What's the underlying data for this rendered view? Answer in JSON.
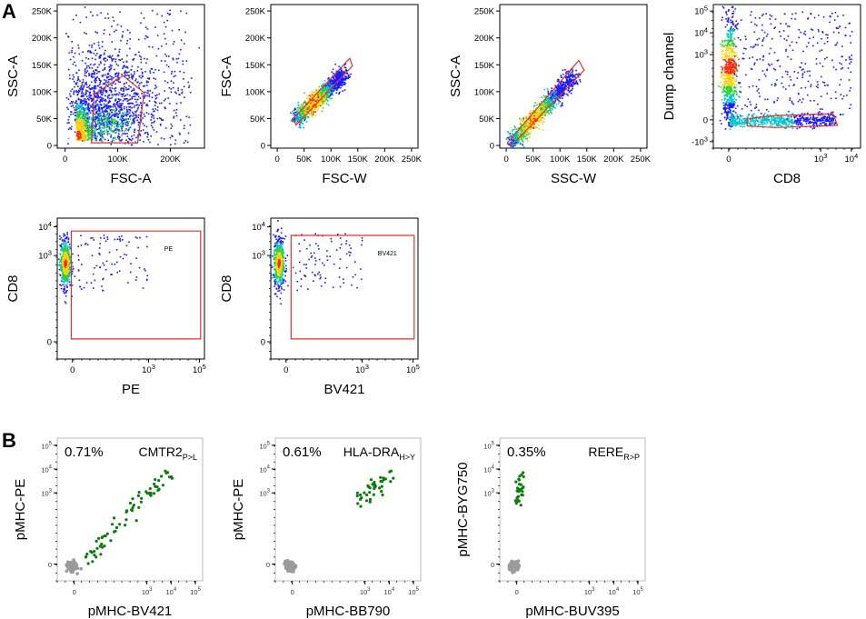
{
  "figure": {
    "panel_a_letter": "A",
    "panel_b_letter": "B",
    "colors": {
      "gate": "#e03030",
      "event_low": "#1a1aff",
      "event_mid": "#00c8c8",
      "event_hi": "#30d030",
      "event_top": "#ff2a00",
      "positive": "#0a7d0a",
      "negative": "#9b9b9b"
    }
  },
  "chart_data": [
    {
      "id": "a1",
      "type": "scatter",
      "xlabel": "FSC-A",
      "ylabel": "SSC-A",
      "xticks": [
        "0",
        "100K",
        "200K"
      ],
      "xtick_values": [
        0,
        100000,
        200000
      ],
      "xlim": [
        -15000,
        265000
      ],
      "yticks": [
        "0",
        "50K",
        "100K",
        "150K",
        "200K",
        "250K"
      ],
      "ytick_values": [
        0,
        50000,
        100000,
        150000,
        200000,
        250000
      ],
      "ylim": [
        -5000,
        262000
      ],
      "gate": {
        "shape": "polygon",
        "points": [
          [
            50000,
            5000
          ],
          [
            55000,
            95000
          ],
          [
            110000,
            130000
          ],
          [
            150000,
            98000
          ],
          [
            138000,
            5000
          ]
        ]
      }
    },
    {
      "id": "a2",
      "type": "scatter",
      "xlabel": "FSC-W",
      "ylabel": "FSC-A",
      "xticks": [
        "0",
        "50K",
        "100K",
        "150K",
        "200K",
        "250K"
      ],
      "xtick_values": [
        0,
        50000,
        100000,
        150000,
        200000,
        250000
      ],
      "xlim": [
        -12000,
        262000
      ],
      "yticks": [
        "0",
        "50K",
        "100K",
        "150K",
        "200K",
        "250K"
      ],
      "ytick_values": [
        0,
        50000,
        100000,
        150000,
        200000,
        250000
      ],
      "ylim": [
        -5000,
        262000
      ],
      "gate": {
        "shape": "polygon",
        "points": [
          [
            30000,
            50000
          ],
          [
            35000,
            38000
          ],
          [
            140000,
            148000
          ],
          [
            135000,
            162000
          ]
        ]
      }
    },
    {
      "id": "a3",
      "type": "scatter",
      "xlabel": "SSC-W",
      "ylabel": "SSC-A",
      "xticks": [
        "0",
        "50K",
        "100K",
        "150K",
        "200K",
        "250K"
      ],
      "xtick_values": [
        0,
        50000,
        100000,
        150000,
        200000,
        250000
      ],
      "xlim": [
        -12000,
        262000
      ],
      "yticks": [
        "0",
        "50K",
        "100K",
        "150K",
        "200K",
        "250K"
      ],
      "ytick_values": [
        0,
        50000,
        100000,
        150000,
        200000,
        250000
      ],
      "ylim": [
        -5000,
        262000
      ],
      "gate": {
        "shape": "polygon",
        "points": [
          [
            2000,
            5000
          ],
          [
            10000,
            0
          ],
          [
            145000,
            140000
          ],
          [
            135000,
            158000
          ]
        ]
      }
    },
    {
      "id": "a4",
      "type": "scatter",
      "xlabel": "CD8",
      "ylabel": "Dump channel",
      "xticks": [
        "0",
        "10 3",
        "10 4"
      ],
      "xtick_values": [
        0,
        3,
        4
      ],
      "xlim": [
        -0.5,
        4.3
      ],
      "yticks": [
        "-10 3",
        "0",
        "10 3",
        "10 4",
        "10 5"
      ],
      "ytick_values": [
        -1,
        0,
        3,
        4,
        5
      ],
      "ylim": [
        -1.3,
        5.3
      ],
      "gate": {
        "shape": "polygon",
        "points": [
          [
            0.6,
            0.05
          ],
          [
            1.5,
            0.2
          ],
          [
            3.4,
            0.28
          ],
          [
            3.55,
            -0.25
          ],
          [
            1.5,
            -0.35
          ],
          [
            0.6,
            -0.28
          ]
        ]
      }
    },
    {
      "id": "a5",
      "type": "scatter",
      "xlabel": "PE",
      "ylabel": "CD8",
      "gate_label": "PE",
      "xticks": [
        "0",
        "10 3",
        "10 5"
      ],
      "xtick_values": [
        0,
        3,
        5
      ],
      "xlim": [
        -0.6,
        5.2
      ],
      "yticks": [
        "0",
        "10 3",
        "10 4"
      ],
      "ytick_values": [
        0,
        3,
        4
      ],
      "ylim": [
        -0.6,
        4.3
      ],
      "gate": {
        "shape": "polygon",
        "points": [
          [
            -0.05,
            0.1
          ],
          [
            -0.05,
            3.85
          ],
          [
            5.05,
            3.85
          ],
          [
            5.05,
            0.1
          ]
        ]
      }
    },
    {
      "id": "a6",
      "type": "scatter",
      "xlabel": "BV421",
      "ylabel": "CD8",
      "gate_label": "BV421",
      "xticks": [
        "0",
        "10 3",
        "10 5"
      ],
      "xtick_values": [
        0,
        3,
        5
      ],
      "xlim": [
        -0.6,
        5.2
      ],
      "yticks": [
        "0",
        "10 3",
        "10 4"
      ],
      "ytick_values": [
        0,
        3,
        4
      ],
      "ylim": [
        -0.6,
        4.3
      ],
      "gate": {
        "shape": "polygon",
        "points": [
          [
            0.2,
            0.1
          ],
          [
            0.2,
            3.7
          ],
          [
            5.05,
            3.7
          ],
          [
            5.05,
            0.1
          ]
        ]
      }
    },
    {
      "id": "b1",
      "type": "scatter",
      "xlabel": "pMHC-BV421",
      "ylabel": "pMHC-PE",
      "frequency": "0.71%",
      "population": "CMTR2",
      "population_sub": "P>L",
      "xticks": [
        "0",
        "10 3",
        "10 4",
        "10 5"
      ],
      "xtick_values": [
        0,
        3,
        4,
        5
      ],
      "xlim": [
        -0.7,
        5.3
      ],
      "yticks": [
        "0",
        "10 3",
        "10 4",
        "10 5"
      ],
      "ytick_values": [
        0,
        3,
        4,
        5
      ],
      "ylim": [
        -0.7,
        5.3
      ],
      "series": [
        {
          "name": "negative",
          "center": [
            -0.1,
            -0.1
          ],
          "spread": [
            0.2,
            0.22
          ],
          "count": 160
        },
        {
          "name": "positive",
          "start": [
            0.5,
            0.2
          ],
          "end": [
            4.0,
            4.0
          ],
          "width": 0.15,
          "count": 70
        }
      ]
    },
    {
      "id": "b2",
      "type": "scatter",
      "xlabel": "pMHC-BB790",
      "ylabel": "pMHC-PE",
      "frequency": "0.61%",
      "population": "HLA-DRA",
      "population_sub": "H>Y",
      "xticks": [
        "0",
        "10 3",
        "10 4",
        "10 5"
      ],
      "xtick_values": [
        0,
        3,
        4,
        5
      ],
      "xlim": [
        -0.7,
        5.3
      ],
      "yticks": [
        "0",
        "10 3",
        "10 4",
        "10 5"
      ],
      "ytick_values": [
        0,
        3,
        4,
        5
      ],
      "ylim": [
        -0.7,
        5.3
      ],
      "series": [
        {
          "name": "negative",
          "center": [
            -0.1,
            -0.1
          ],
          "spread": [
            0.2,
            0.22
          ],
          "count": 160
        },
        {
          "name": "positive",
          "start": [
            2.8,
            2.6
          ],
          "end": [
            4.1,
            3.8
          ],
          "width": 0.18,
          "count": 40
        }
      ]
    },
    {
      "id": "b3",
      "type": "scatter",
      "xlabel": "pMHC-BUV395",
      "ylabel": "pMHC-BYG750",
      "frequency": "0.35%",
      "population": "RERE",
      "population_sub": "R>P",
      "xticks": [
        "0",
        "10 3",
        "10 4",
        "10 5"
      ],
      "xtick_values": [
        0,
        3,
        4,
        5
      ],
      "xlim": [
        -0.7,
        5.3
      ],
      "yticks": [
        "0",
        "10 3",
        "10 4",
        "10 5"
      ],
      "ytick_values": [
        0,
        3,
        4,
        5
      ],
      "ylim": [
        -0.7,
        5.3
      ],
      "series": [
        {
          "name": "negative",
          "center": [
            -0.1,
            -0.1
          ],
          "spread": [
            0.2,
            0.22
          ],
          "count": 160
        },
        {
          "name": "positive",
          "start": [
            -0.05,
            2.5
          ],
          "end": [
            0.2,
            3.8
          ],
          "width": 0.1,
          "count": 30
        }
      ]
    }
  ]
}
